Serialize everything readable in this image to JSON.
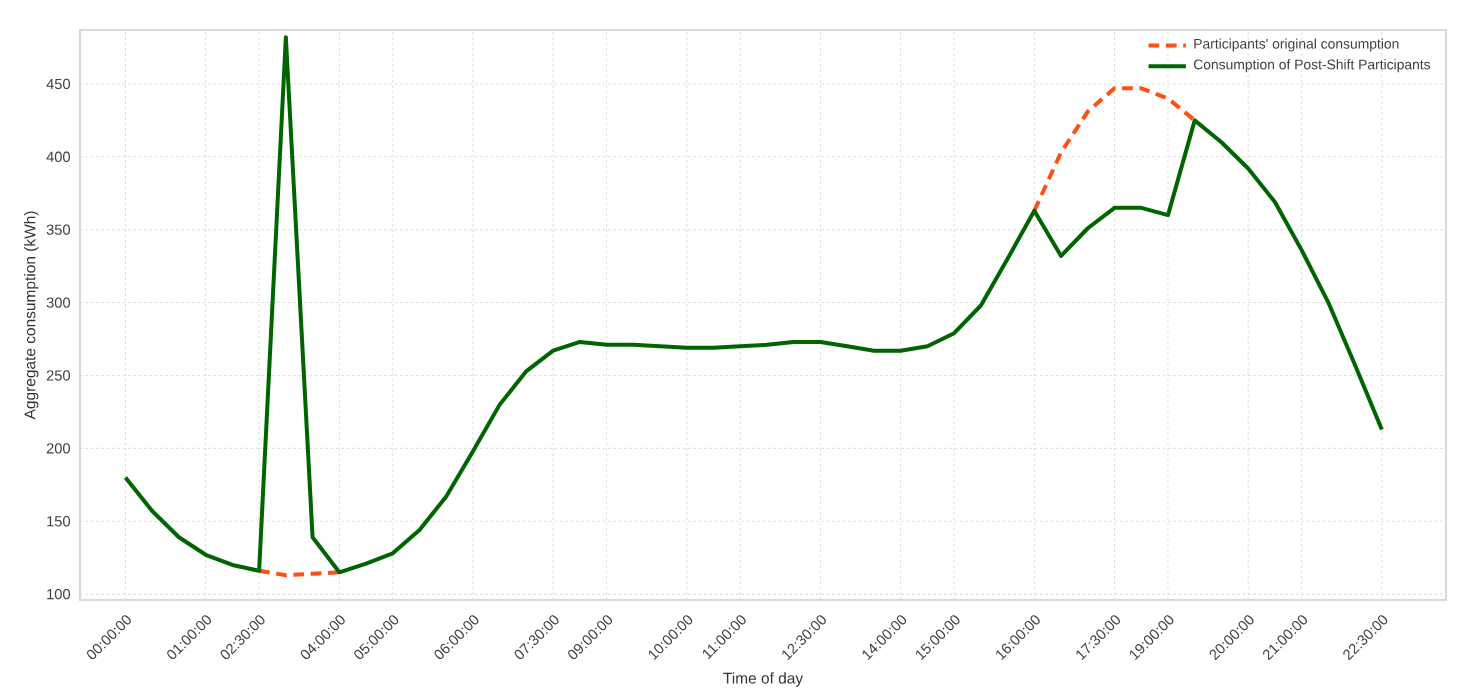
{
  "chart_data": {
    "type": "line",
    "xlabel": "Time of day",
    "ylabel": "Aggregate consumption (kWh)",
    "categories": [
      "00:00:00",
      null,
      null,
      "01:00:00",
      null,
      "02:30:00",
      null,
      null,
      "04:00:00",
      null,
      "05:00:00",
      null,
      null,
      "06:00:00",
      null,
      null,
      "07:30:00",
      null,
      "09:00:00",
      null,
      null,
      "10:00:00",
      null,
      "11:00:00",
      null,
      null,
      "12:30:00",
      null,
      null,
      "14:00:00",
      null,
      "15:00:00",
      null,
      null,
      "16:00:00",
      null,
      null,
      "17:30:00",
      null,
      "19:00:00",
      null,
      null,
      "20:00:00",
      null,
      "21:00:00",
      null,
      null,
      "22:30:00"
    ],
    "series": [
      {
        "name": "Participants' original consumption",
        "color": "#ff4f12",
        "line_style": "dashed",
        "values": [
          null,
          null,
          null,
          null,
          null,
          116,
          113,
          114,
          115,
          null,
          null,
          null,
          null,
          null,
          null,
          null,
          null,
          null,
          null,
          null,
          null,
          null,
          null,
          null,
          null,
          null,
          null,
          null,
          null,
          null,
          null,
          null,
          null,
          null,
          363,
          403,
          431,
          447,
          447,
          440,
          425,
          null,
          null,
          null,
          null,
          null,
          null,
          null
        ]
      },
      {
        "name": "Consumption of Post-Shift Participants",
        "color": "#006400",
        "line_style": "solid",
        "values": [
          180,
          157,
          139,
          127,
          120,
          116,
          482,
          139,
          115,
          121,
          128,
          144,
          167,
          198,
          230,
          253,
          267,
          273,
          271,
          271,
          270,
          269,
          269,
          270,
          271,
          273,
          273,
          270,
          267,
          267,
          270,
          279,
          298,
          330,
          363,
          332,
          351,
          365,
          365,
          360,
          425,
          410,
          392,
          369,
          336,
          300,
          257,
          213
        ]
      }
    ],
    "ylim": [
      96,
      487
    ],
    "yticks": [
      100,
      150,
      200,
      250,
      300,
      350,
      400,
      450
    ],
    "grid": true,
    "legend": "top right",
    "marker": "none"
  }
}
